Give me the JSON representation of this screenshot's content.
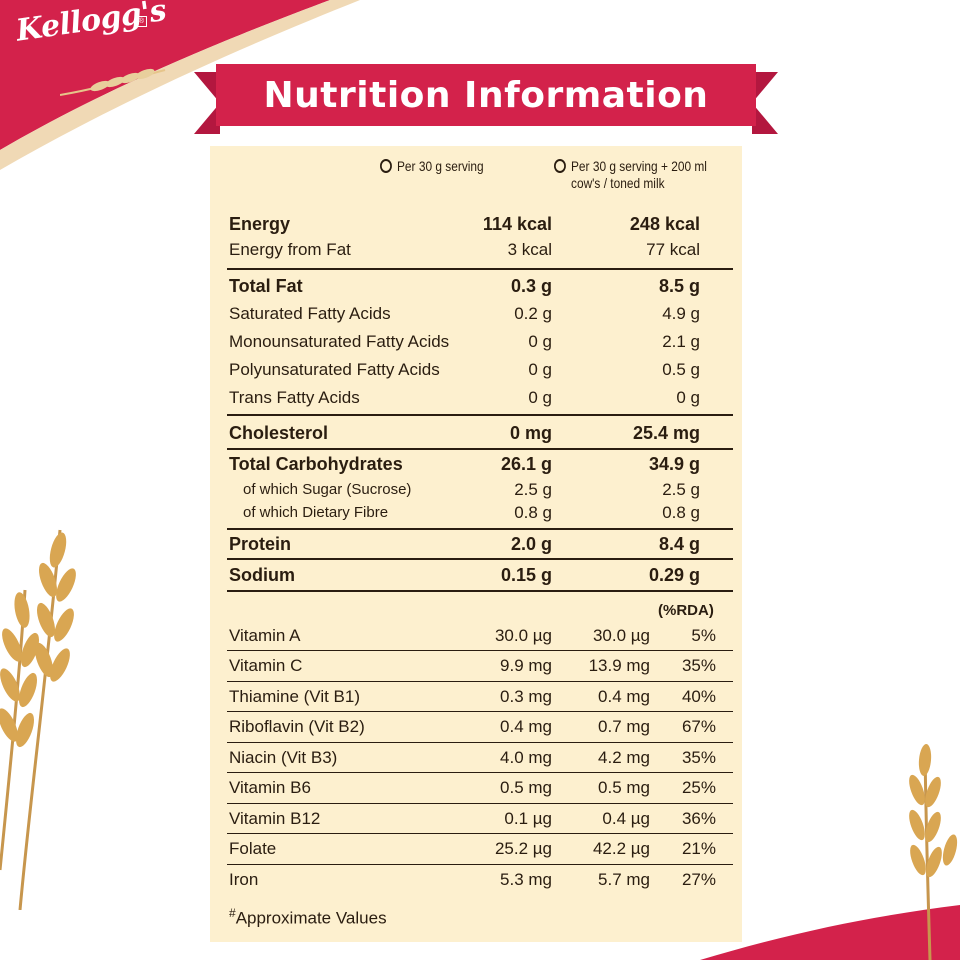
{
  "brand": {
    "logo_text": "Kellogg's",
    "registered": "®"
  },
  "banner": {
    "title": "Nutrition Information"
  },
  "columns": {
    "col1": "Per 30 g serving",
    "col2_line1": "Per 30 g serving + 200 ml",
    "col2_line2": "cow's / toned milk"
  },
  "rows": [
    {
      "label": "Energy",
      "v1": "114 kcal",
      "v2": "248 kcal"
    },
    {
      "label": "Energy from Fat",
      "v1": "3 kcal",
      "v2": "77 kcal"
    },
    {
      "label": "Total Fat",
      "v1": "0.3 g",
      "v2": "8.5 g"
    },
    {
      "label": "Saturated Fatty Acids",
      "v1": "0.2 g",
      "v2": "4.9 g"
    },
    {
      "label": "Monounsaturated Fatty Acids",
      "v1": "0 g",
      "v2": "2.1 g"
    },
    {
      "label": "Polyunsaturated Fatty Acids",
      "v1": "0 g",
      "v2": "0.5 g"
    },
    {
      "label": "Trans Fatty Acids",
      "v1": "0 g",
      "v2": "0 g"
    },
    {
      "label": "Cholesterol",
      "v1": "0 mg",
      "v2": "25.4 mg"
    },
    {
      "label": "Total Carbohydrates",
      "v1": "26.1 g",
      "v2": "34.9 g"
    },
    {
      "label": "of which Sugar (Sucrose)",
      "v1": "2.5 g",
      "v2": "2.5 g"
    },
    {
      "label": "of which Dietary Fibre",
      "v1": "0.8 g",
      "v2": "0.8 g"
    },
    {
      "label": "Protein",
      "v1": "2.0 g",
      "v2": "8.4 g"
    },
    {
      "label": "Sodium",
      "v1": "0.15 g",
      "v2": "0.29 g"
    }
  ],
  "rda_header": "(%RDA)",
  "micros": [
    {
      "label": "Vitamin A",
      "v1": "30.0 µg",
      "v2": "30.0 µg",
      "rda": "5%"
    },
    {
      "label": "Vitamin C",
      "v1": "9.9 mg",
      "v2": "13.9 mg",
      "rda": "35%"
    },
    {
      "label": "Thiamine (Vit B1)",
      "v1": "0.3 mg",
      "v2": "0.4 mg",
      "rda": "40%"
    },
    {
      "label": "Riboflavin (Vit B2)",
      "v1": "0.4 mg",
      "v2": "0.7 mg",
      "rda": "67%"
    },
    {
      "label": "Niacin (Vit B3)",
      "v1": "4.0 mg",
      "v2": "4.2 mg",
      "rda": "35%"
    },
    {
      "label": "Vitamin B6",
      "v1": "0.5 mg",
      "v2": "0.5 mg",
      "rda": "25%"
    },
    {
      "label": "Vitamin B12",
      "v1": "0.1 µg",
      "v2": "0.4 µg",
      "rda": "36%"
    },
    {
      "label": "Folate",
      "v1": "25.2 µg",
      "v2": "42.2 µg",
      "rda": "21%"
    },
    {
      "label": "Iron",
      "v1": "5.3 mg",
      "v2": "5.7 mg",
      "rda": "27%"
    }
  ],
  "footnote": {
    "mark": "#",
    "text": "Approximate Values"
  },
  "colors": {
    "brand_red": "#d3224b",
    "panel": "#fdf0cf",
    "text": "#2a1d10",
    "wheat": "#d9a652"
  }
}
